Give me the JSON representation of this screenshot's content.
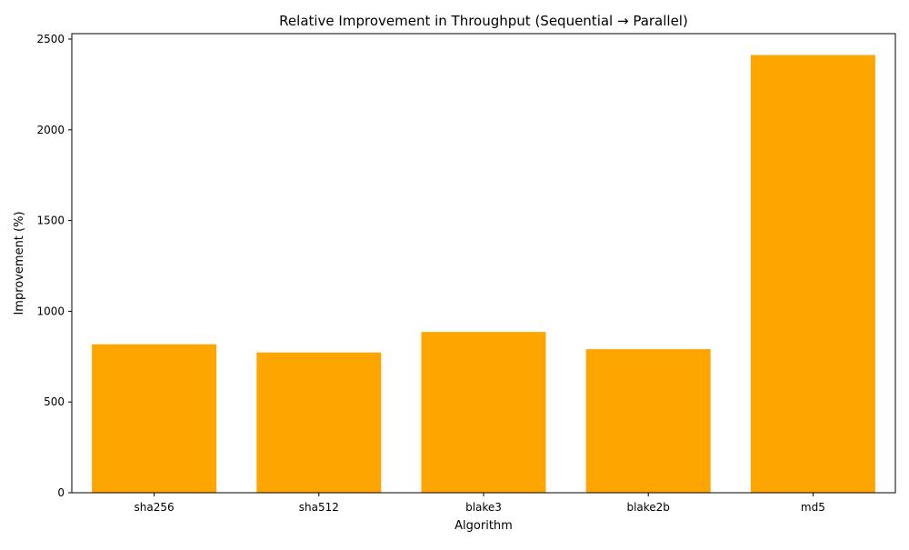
{
  "chart_data": {
    "type": "bar",
    "title": "Relative Improvement in Throughput (Sequential → Parallel)",
    "xlabel": "Algorithm",
    "ylabel": "Improvement (%)",
    "categories": [
      "sha256",
      "sha512",
      "blake3",
      "blake2b",
      "md5"
    ],
    "values": [
      818,
      773,
      886,
      791,
      2412
    ],
    "ylim": [
      0,
      2530
    ],
    "yticks": [
      0,
      500,
      1000,
      1500,
      2000,
      2500
    ],
    "bar_color": "#ffa500",
    "grid": false,
    "legend": "none"
  }
}
